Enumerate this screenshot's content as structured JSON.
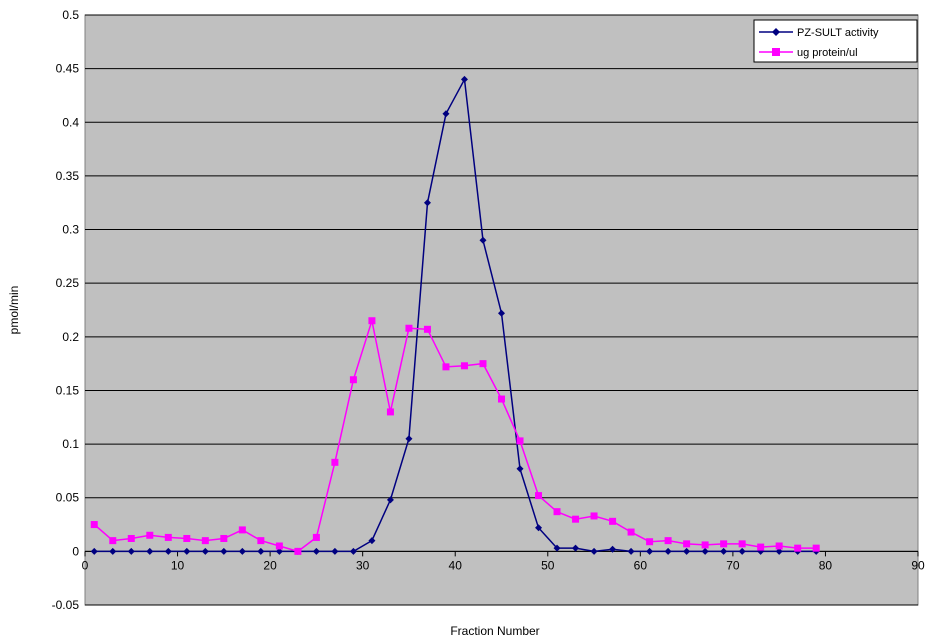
{
  "chart_data": {
    "type": "line",
    "title": "",
    "xlabel": "Fraction Number",
    "ylabel": "pmol/min",
    "xlim": [
      0,
      90
    ],
    "ylim": [
      -0.05,
      0.5
    ],
    "xticks": [
      0,
      10,
      20,
      30,
      40,
      50,
      60,
      70,
      80,
      90
    ],
    "xtick_labels": [
      "0",
      "10",
      "20",
      "30",
      "40",
      "50",
      "60",
      "70",
      "80",
      "90"
    ],
    "yticks": [
      -0.05,
      0,
      0.05,
      0.1,
      0.15,
      0.2,
      0.25,
      0.3,
      0.35,
      0.4,
      0.45,
      0.5
    ],
    "ytick_labels": [
      "-0.05",
      "0",
      "0.05",
      "0.1",
      "0.15",
      "0.2",
      "0.25",
      "0.3",
      "0.35",
      "0.4",
      "0.45",
      "0.5"
    ],
    "grid": "horizontal",
    "plot_background": "#c0c0c0",
    "legend_position": "top-right",
    "series": [
      {
        "name": "PZ-SULT activity",
        "color": "#000080",
        "marker": "diamond",
        "x": [
          1,
          3,
          5,
          7,
          9,
          11,
          13,
          15,
          17,
          19,
          21,
          23,
          25,
          27,
          29,
          31,
          33,
          35,
          37,
          39,
          41,
          43,
          45,
          47,
          49,
          51,
          53,
          55,
          57,
          59,
          61,
          63,
          65,
          67,
          69,
          71,
          73,
          75,
          77,
          79
        ],
        "y": [
          0,
          0,
          0,
          0,
          0,
          0,
          0,
          0,
          0,
          0,
          0,
          0,
          0,
          0,
          0,
          0.01,
          0.048,
          0.105,
          0.325,
          0.408,
          0.44,
          0.29,
          0.222,
          0.077,
          0.022,
          0.003,
          0.003,
          0,
          0.002,
          0,
          0,
          0,
          0,
          0,
          0,
          0,
          0,
          0,
          0,
          0
        ]
      },
      {
        "name": "ug protein/ul",
        "color": "#ff00ff",
        "marker": "square",
        "x": [
          1,
          3,
          5,
          7,
          9,
          11,
          13,
          15,
          17,
          19,
          21,
          23,
          25,
          27,
          29,
          31,
          33,
          35,
          37,
          39,
          41,
          43,
          45,
          47,
          49,
          51,
          53,
          55,
          57,
          59,
          61,
          63,
          65,
          67,
          69,
          71,
          73,
          75,
          77,
          79
        ],
        "y": [
          0.025,
          0.01,
          0.012,
          0.015,
          0.013,
          0.012,
          0.01,
          0.012,
          0.02,
          0.01,
          0.005,
          0,
          0.013,
          0.083,
          0.16,
          0.215,
          0.13,
          0.208,
          0.207,
          0.172,
          0.173,
          0.175,
          0.142,
          0.103,
          0.052,
          0.037,
          0.03,
          0.033,
          0.028,
          0.018,
          0.009,
          0.01,
          0.007,
          0.006,
          0.007,
          0.007,
          0.004,
          0.005,
          0.003,
          0.003
        ]
      }
    ]
  }
}
